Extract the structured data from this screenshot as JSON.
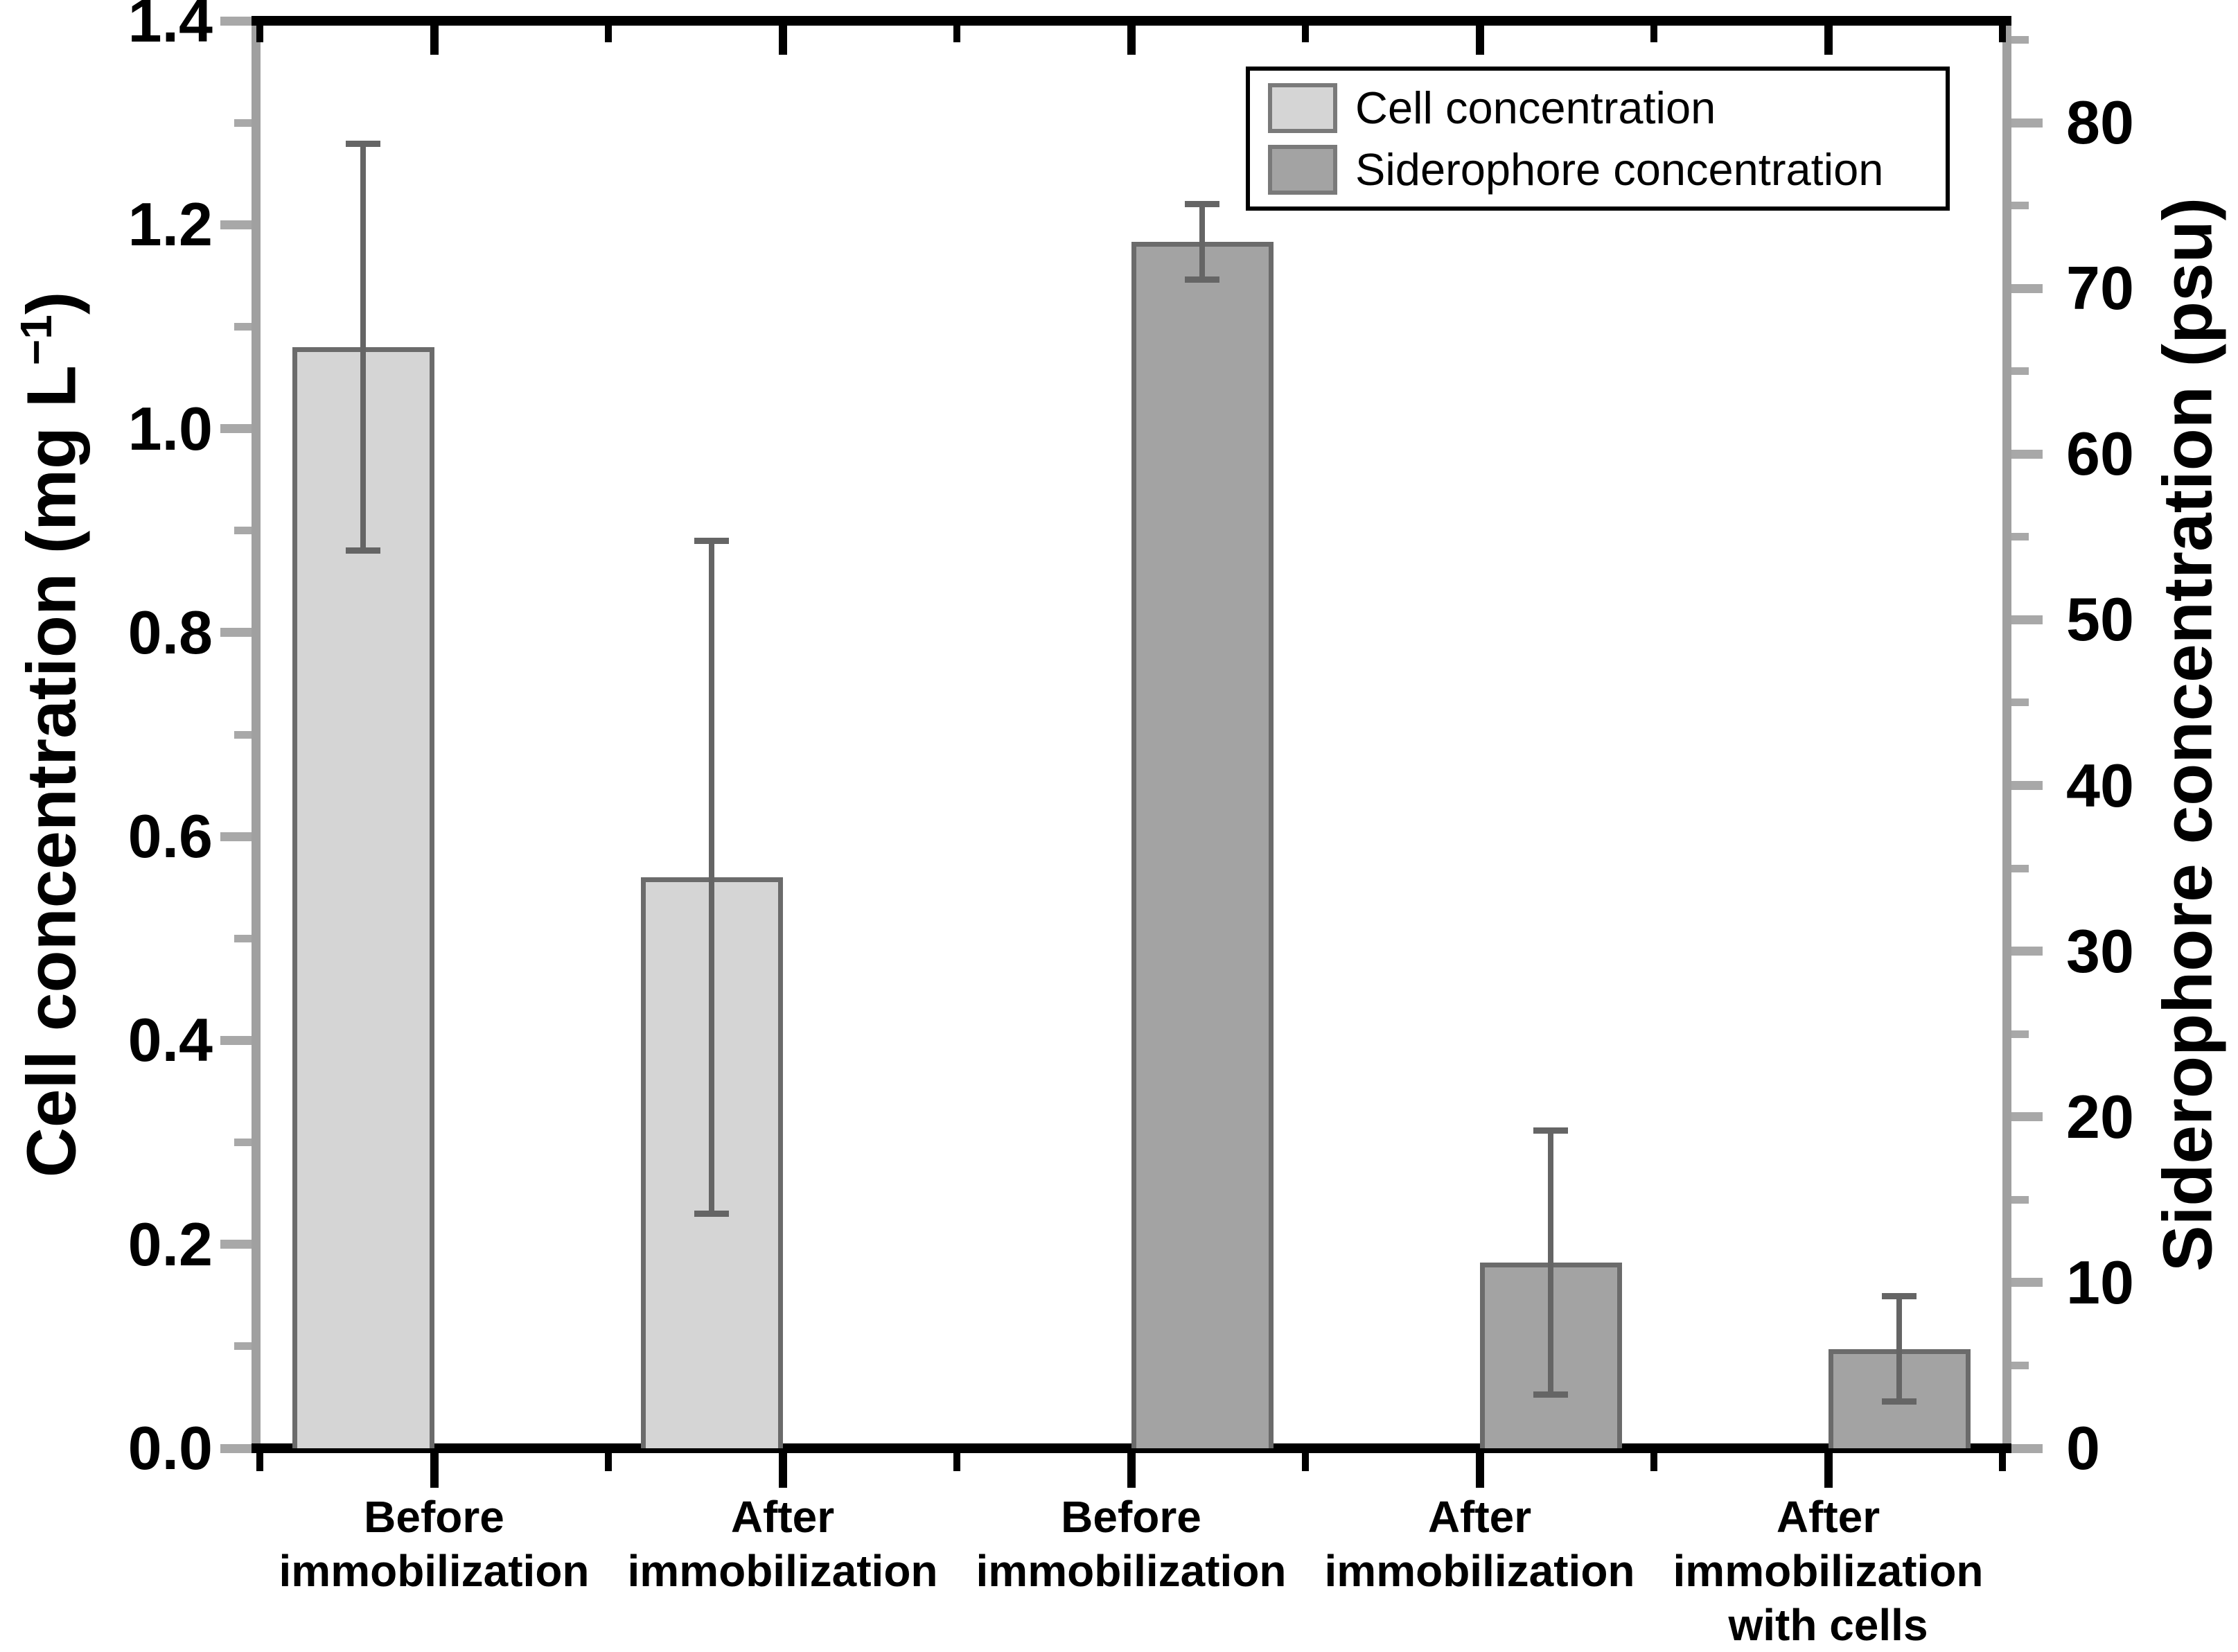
{
  "figure": {
    "left_axis": {
      "title_pre": "Cell concentration (mg L",
      "title_sup": "−1",
      "title_post": ")",
      "min": 0,
      "max": 1.4,
      "major_step": 0.2,
      "minor_step": 0.1,
      "tick_labels": [
        "0.0",
        "0.2",
        "0.4",
        "0.6",
        "0.8",
        "1.0",
        "1.2",
        "1.4"
      ]
    },
    "right_axis": {
      "title": "Siderophore concentration (psu)",
      "min": 0,
      "max": 80,
      "frame_max": 86.15,
      "major_step": 10,
      "minor_step": 5,
      "tick_labels": [
        "0",
        "10",
        "20",
        "30",
        "40",
        "50",
        "60",
        "70",
        "80"
      ]
    },
    "legend": {
      "items": [
        {
          "label": "Cell concentration",
          "color": "#d5d5d5"
        },
        {
          "label": "Siderophore concentration",
          "color": "#a3a3a3"
        }
      ]
    },
    "categories": [
      {
        "lines": [
          "Before",
          "immobilization"
        ]
      },
      {
        "lines": [
          "After",
          "immobilization"
        ]
      },
      {
        "lines": [
          "Before",
          "immobilization"
        ]
      },
      {
        "lines": [
          "After",
          "immobilization"
        ]
      },
      {
        "lines": [
          "After",
          "immobilization",
          "with cells"
        ]
      }
    ]
  },
  "chart_data": {
    "type": "bar",
    "dual_axis": true,
    "title": "",
    "categories": [
      "Before immobilization",
      "After immobilization",
      "Before immobilization",
      "After immobilization",
      "After immobilization with cells"
    ],
    "series": [
      {
        "name": "Cell concentration",
        "axis": "left",
        "unit": "mg L-1",
        "color": "#d5d5d5",
        "values": [
          1.08,
          0.56,
          null,
          null,
          null
        ],
        "errors": [
          0.2,
          0.33,
          null,
          null,
          null
        ]
      },
      {
        "name": "Siderophore concentration",
        "axis": "right",
        "unit": "psu",
        "color": "#a3a3a3",
        "values": [
          null,
          null,
          72.8,
          11.2,
          6.0
        ],
        "errors": [
          null,
          null,
          2.3,
          8.0,
          3.2
        ]
      }
    ],
    "left_ylabel": "Cell concentration (mg L−1)",
    "right_ylabel": "Siderophore concentration (psu)",
    "left_ylim": [
      0,
      1.4
    ],
    "right_ylim": [
      0,
      86.15
    ],
    "grid": false,
    "legend_position": "top-right"
  },
  "colors": {
    "bar_border": "#6b6b6b",
    "error_bar": "#656565",
    "gray_spine": "#a0a0a0",
    "gray_tick": "#a8a8a8",
    "black": "#000000",
    "background": "#ffffff"
  }
}
